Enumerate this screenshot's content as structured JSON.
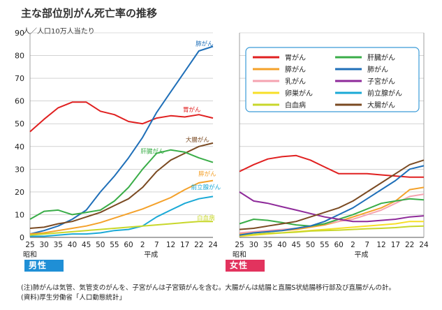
{
  "title": "主な部位別がん死亡率の推移",
  "unit_label": "人／人口10万人当たり",
  "note1": "(注)肺がんは気管、気管支のがんを、子宮がんは子宮頸がんを含む。大腸がんは結腸と直腸S状結腸移行部及び直腸がんの計。",
  "note2": "(資料)厚生労働省「人口動態統計」",
  "colors": {
    "stomach": "#e02020",
    "lung": "#1f6fb8",
    "liver": "#3aad48",
    "colorectal": "#7a4a22",
    "pancreas": "#f4a12a",
    "prostate": "#1aa9d6",
    "leukemia": "#c8d72b",
    "breast": "#f5a3b0",
    "uterus": "#8e2a9a",
    "ovary": "#f7df27"
  },
  "chart_data": [
    {
      "type": "line",
      "badge": "男性",
      "x": [
        "25",
        "30",
        "35",
        "40",
        "45",
        "50",
        "55",
        "60",
        "2",
        "7",
        "12",
        "17",
        "22",
        "24"
      ],
      "era_labels": [
        "昭和",
        "平成"
      ],
      "ylim": [
        0,
        90
      ],
      "yticks": [
        0,
        10,
        20,
        30,
        40,
        50,
        60,
        70,
        80,
        90
      ],
      "series": [
        {
          "key": "stomach",
          "name": "胃がん",
          "values": [
            46.5,
            52,
            57,
            59.5,
            59.5,
            55.5,
            54,
            51,
            50,
            52.5,
            53.5,
            53,
            54,
            52.5
          ]
        },
        {
          "key": "lung",
          "name": "肺がん",
          "values": [
            1.5,
            3,
            5,
            8,
            12,
            20,
            27,
            35,
            44,
            55,
            64,
            73,
            82,
            84
          ]
        },
        {
          "key": "colorectal",
          "name": "大腸がん",
          "values": [
            4,
            4.5,
            6,
            7,
            9,
            11,
            14,
            17,
            22,
            29,
            34,
            37,
            40,
            41.5
          ]
        },
        {
          "key": "liver",
          "name": "肝臓がん",
          "values": [
            8,
            11.5,
            12,
            10,
            11,
            12,
            16,
            22,
            30,
            37,
            38.5,
            37.5,
            35,
            33
          ]
        },
        {
          "key": "pancreas",
          "name": "膵がん",
          "values": [
            1.5,
            2,
            3,
            4,
            5,
            6.5,
            8.5,
            10.5,
            12.5,
            15,
            17.5,
            21,
            24,
            25
          ]
        },
        {
          "key": "prostate",
          "name": "前立腺がん",
          "values": [
            0.5,
            0.5,
            1,
            1.5,
            1.5,
            2,
            3,
            3.5,
            5,
            9,
            12,
            15,
            17,
            18
          ]
        },
        {
          "key": "leukemia",
          "name": "白血病",
          "values": [
            1,
            1.5,
            2,
            2.5,
            3,
            3.5,
            4,
            4.5,
            5,
            5.5,
            6,
            6.5,
            7,
            7
          ]
        }
      ]
    },
    {
      "type": "line",
      "badge": "女性",
      "x": [
        "25",
        "30",
        "35",
        "40",
        "45",
        "50",
        "55",
        "60",
        "2",
        "7",
        "12",
        "17",
        "22",
        "24"
      ],
      "era_labels": [
        "昭和",
        "平成"
      ],
      "ylim": [
        0,
        90
      ],
      "yticks": [
        0,
        10,
        20,
        30,
        40,
        50,
        60,
        70,
        80,
        90
      ],
      "legend_position": "top",
      "series": [
        {
          "key": "stomach",
          "name": "胃がん",
          "values": [
            29,
            32,
            34.5,
            35.5,
            36,
            34,
            31,
            28,
            28,
            28,
            27.5,
            27,
            26.5,
            26.5
          ]
        },
        {
          "key": "pancreas",
          "name": "膵がん",
          "values": [
            1.5,
            2,
            2.5,
            3,
            3.5,
            4.5,
            5.5,
            7,
            9,
            11,
            13,
            16,
            21,
            22
          ]
        },
        {
          "key": "breast",
          "name": "乳がん",
          "values": [
            2,
            2.5,
            3,
            3.5,
            4,
            5,
            6,
            7,
            8,
            10,
            12,
            15,
            18,
            19
          ]
        },
        {
          "key": "ovary",
          "name": "卵巣がん",
          "values": [
            0.5,
            1,
            1.5,
            2,
            2.5,
            3,
            3.5,
            4,
            4.5,
            5,
            5.5,
            6,
            7,
            7
          ]
        },
        {
          "key": "leukemia",
          "name": "白血病",
          "values": [
            1,
            1.3,
            1.8,
            2,
            2.3,
            2.8,
            3,
            3.2,
            3.5,
            3.8,
            4,
            4.3,
            4.8,
            5
          ]
        },
        {
          "key": "liver",
          "name": "肝臓がん",
          "values": [
            6,
            8,
            7.5,
            6.5,
            5.5,
            5,
            6,
            8,
            10,
            12.5,
            15,
            16,
            17,
            16.5
          ]
        },
        {
          "key": "lung",
          "name": "肺がん",
          "values": [
            1,
            2,
            2.5,
            3,
            4,
            5,
            7,
            10,
            13,
            17,
            21,
            25,
            30,
            31.5
          ]
        },
        {
          "key": "uterus",
          "name": "子宮がん",
          "values": [
            20,
            16,
            15,
            13.5,
            12,
            10.5,
            9,
            8,
            7,
            7,
            7.5,
            8,
            9,
            9.5
          ]
        },
        {
          "key": "prostate",
          "name": "前立腺がん",
          "values": [
            0,
            0,
            0,
            0,
            0,
            0,
            0,
            0,
            0,
            0,
            0,
            0,
            0,
            0
          ]
        },
        {
          "key": "colorectal",
          "name": "大腸がん",
          "values": [
            3.5,
            4,
            5,
            6,
            7,
            9,
            11,
            13,
            16,
            20,
            24,
            28,
            32,
            34
          ]
        }
      ]
    }
  ],
  "line_labels_male": [
    "肺がん",
    "胃がん",
    "大腸がん",
    "肝臓がん",
    "膵がん",
    "前立腺がん",
    "白血病"
  ]
}
